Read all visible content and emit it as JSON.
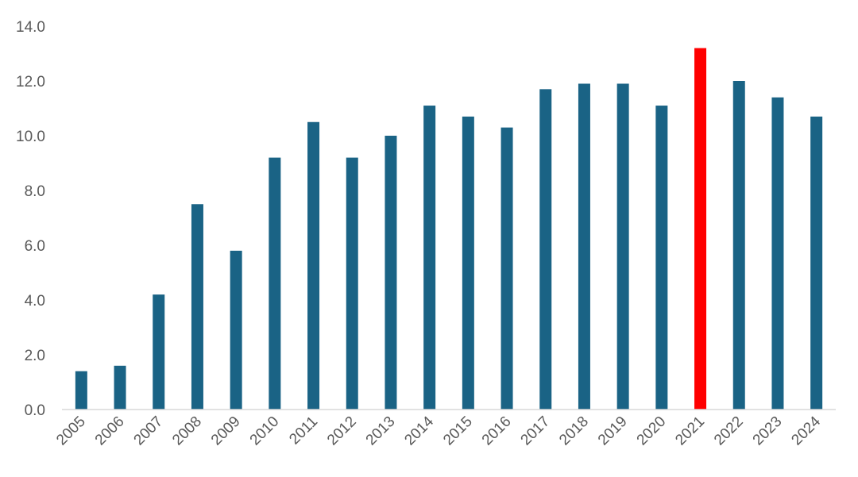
{
  "chart_data": {
    "type": "bar",
    "title": "",
    "xlabel": "",
    "ylabel": "",
    "categories": [
      "2005",
      "2006",
      "2007",
      "2008",
      "2009",
      "2010",
      "2011",
      "2012",
      "2013",
      "2014",
      "2015",
      "2016",
      "2017",
      "2018",
      "2019",
      "2020",
      "2021",
      "2022",
      "2023",
      "2024"
    ],
    "series": [
      {
        "values": [
          1.4,
          1.6,
          4.2,
          7.5,
          5.8,
          9.2,
          10.5,
          9.2,
          10.0,
          11.1,
          10.7,
          10.3,
          11.7,
          11.9,
          11.9,
          11.1,
          13.2,
          12.0,
          11.4,
          10.7
        ]
      }
    ],
    "ylim": [
      0,
      14
    ],
    "yticks": [
      "0.0",
      "2.0",
      "4.0",
      "6.0",
      "8.0",
      "10.0",
      "12.0",
      "14.0"
    ],
    "grid": false,
    "legend": "none",
    "colors": {
      "bar": "#1a6385",
      "highlight": "#ff0000",
      "axis": "#d9d9d9",
      "tick_text": "#595959"
    },
    "highlight_category": "2021"
  }
}
